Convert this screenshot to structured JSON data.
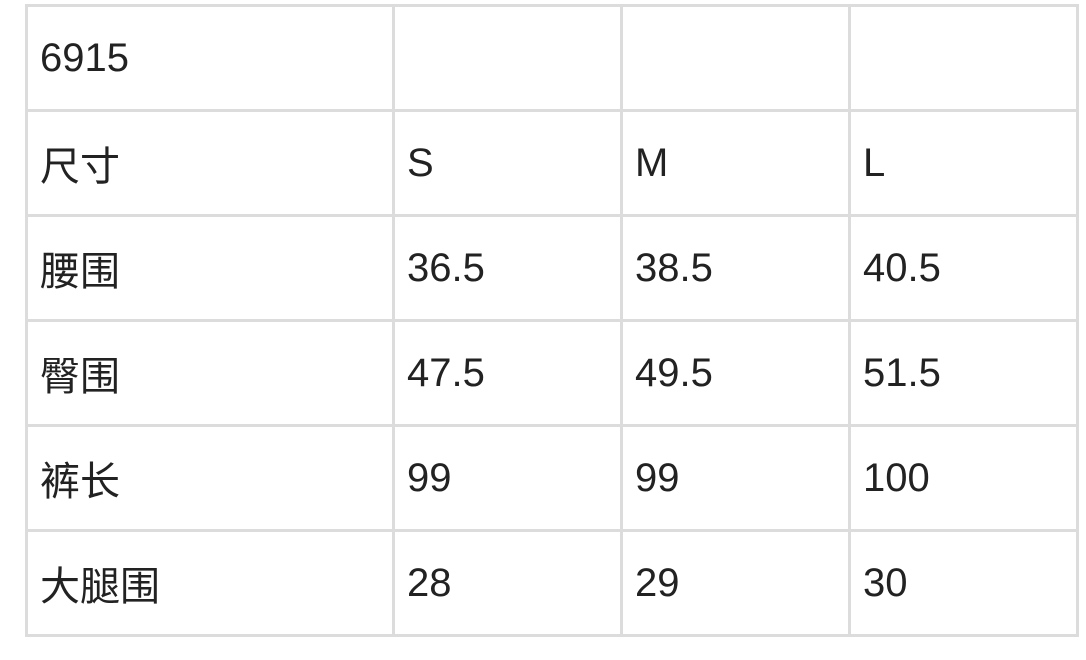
{
  "table": {
    "rows": [
      [
        "6915",
        "",
        "",
        ""
      ],
      [
        "尺寸",
        "S",
        "M",
        "L"
      ],
      [
        "腰围",
        "36.5",
        "38.5",
        "40.5"
      ],
      [
        "臀围",
        "47.5",
        "49.5",
        "51.5"
      ],
      [
        "裤长",
        "99",
        "99",
        "100"
      ],
      [
        "大腿围",
        "28",
        "29",
        "30"
      ]
    ]
  }
}
